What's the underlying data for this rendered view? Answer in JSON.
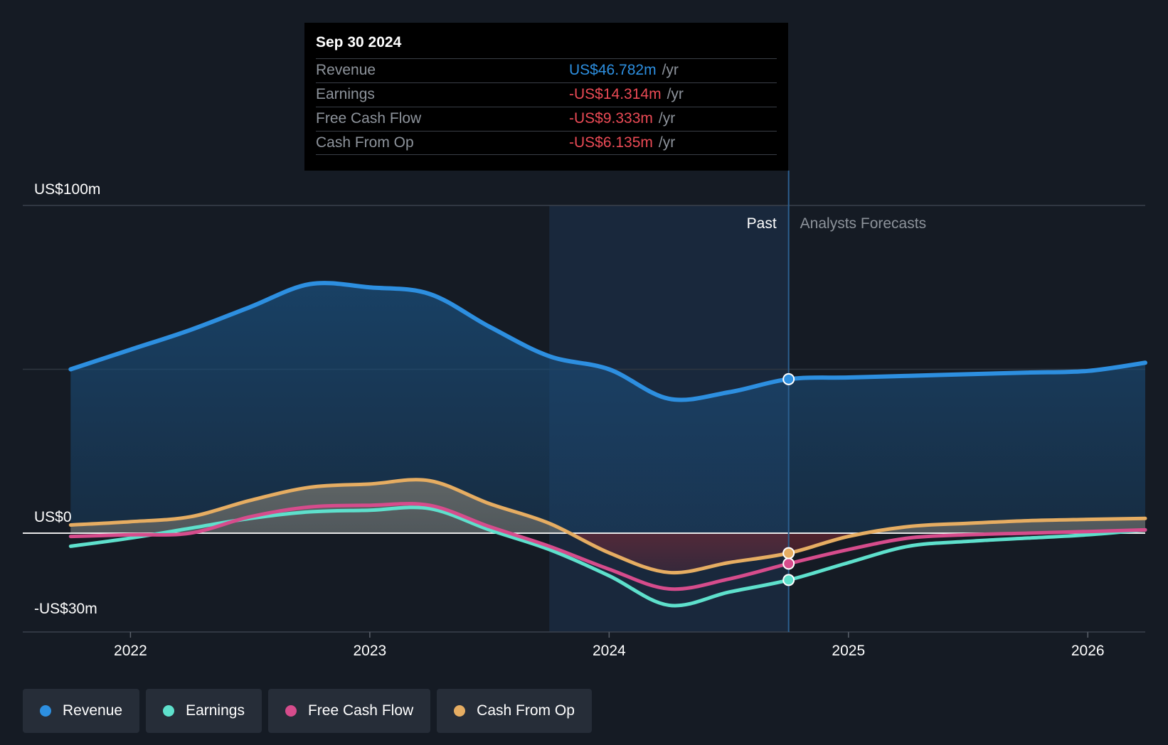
{
  "tooltip": {
    "date": "Sep 30 2024",
    "rows": [
      {
        "label": "Revenue",
        "value": "US$46.782m",
        "unit": "/yr",
        "color": "#2d8fe0"
      },
      {
        "label": "Earnings",
        "value": "-US$14.314m",
        "unit": "/yr",
        "color": "#ea4a55"
      },
      {
        "label": "Free Cash Flow",
        "value": "-US$9.333m",
        "unit": "/yr",
        "color": "#ea4a55"
      },
      {
        "label": "Cash From Op",
        "value": "-US$6.135m",
        "unit": "/yr",
        "color": "#ea4a55"
      }
    ]
  },
  "legend": [
    {
      "label": "Revenue",
      "color": "#2d8fe0"
    },
    {
      "label": "Earnings",
      "color": "#5ee0cc"
    },
    {
      "label": "Free Cash Flow",
      "color": "#d64c8c"
    },
    {
      "label": "Cash From Op",
      "color": "#e6ad62"
    }
  ],
  "chart_data": {
    "type": "line",
    "title": "",
    "y_axis_labels": [
      "US$100m",
      "US$0",
      "-US$30m"
    ],
    "ylim": [
      -30,
      100
    ],
    "xlim": [
      2021.55,
      2026.24
    ],
    "x_tick_labels": [
      "2022",
      "2023",
      "2024",
      "2025",
      "2026"
    ],
    "x_ticks": [
      2022,
      2023,
      2024,
      2025,
      2026
    ],
    "past_label": "Past",
    "forecast_label": "Analysts Forecasts",
    "past_region_start": 2023.75,
    "divider_x": 2024.75,
    "series": [
      {
        "name": "Revenue",
        "color": "#2d8fe0",
        "x": [
          2021.75,
          2022.0,
          2022.25,
          2022.5,
          2022.75,
          2023.0,
          2023.25,
          2023.5,
          2023.75,
          2024.0,
          2024.25,
          2024.5,
          2024.75,
          2025.0,
          2025.25,
          2025.5,
          2025.75,
          2026.0,
          2026.24
        ],
        "values": [
          50,
          56,
          62,
          69,
          76,
          75,
          73,
          63,
          54,
          50,
          41,
          43,
          47,
          47.5,
          48,
          48.5,
          49,
          49.5,
          52
        ]
      },
      {
        "name": "Earnings",
        "color": "#5ee0cc",
        "x": [
          2021.75,
          2022.0,
          2022.25,
          2022.5,
          2022.75,
          2023.0,
          2023.25,
          2023.5,
          2023.75,
          2024.0,
          2024.25,
          2024.5,
          2024.75,
          2025.0,
          2025.25,
          2025.5,
          2025.75,
          2026.0,
          2026.24
        ],
        "values": [
          -4,
          -1.5,
          1.5,
          4.5,
          6.5,
          7,
          7.5,
          1,
          -5,
          -13,
          -22,
          -18,
          -14.3,
          -9,
          -4,
          -2.5,
          -1.5,
          -0.5,
          1
        ]
      },
      {
        "name": "Free Cash Flow",
        "color": "#d64c8c",
        "x": [
          2021.75,
          2022.0,
          2022.25,
          2022.5,
          2022.75,
          2023.0,
          2023.25,
          2023.5,
          2023.75,
          2024.0,
          2024.25,
          2024.5,
          2024.75,
          2025.0,
          2025.25,
          2025.5,
          2025.75,
          2026.0,
          2026.24
        ],
        "values": [
          -1,
          -0.5,
          0,
          5,
          8,
          8.5,
          8.5,
          2,
          -4,
          -11,
          -17,
          -14,
          -9.3,
          -5,
          -1.5,
          -0.5,
          0,
          0.5,
          1
        ]
      },
      {
        "name": "Cash From Op",
        "color": "#e6ad62",
        "x": [
          2021.75,
          2022.0,
          2022.25,
          2022.5,
          2022.75,
          2023.0,
          2023.25,
          2023.5,
          2023.75,
          2024.0,
          2024.25,
          2024.5,
          2024.75,
          2025.0,
          2025.25,
          2025.5,
          2025.75,
          2026.0,
          2026.24
        ],
        "values": [
          2.5,
          3.5,
          5,
          10,
          14,
          15,
          16,
          9,
          3,
          -6,
          -12,
          -9,
          -6.1,
          -1,
          2,
          3,
          3.8,
          4.2,
          4.5
        ]
      }
    ]
  }
}
